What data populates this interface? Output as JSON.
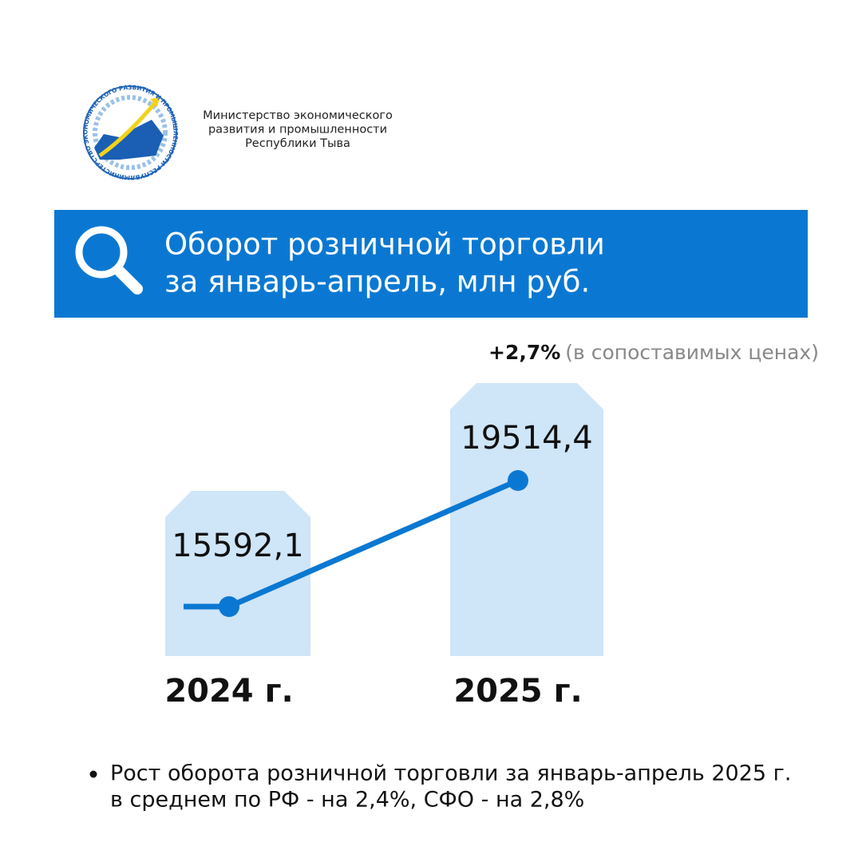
{
  "header": {
    "org_lines": [
      "Министерство экономического",
      "развития и промышленности",
      "Республики Тыва"
    ],
    "logo_text": "МИНИСТЕРСТВО ЭКОНОМИЧЕСКОГО РАЗВИТИЯ И ПРОМЫШЛЕННОСТИ РЕСПУБЛИКИ ТЫВА"
  },
  "chart_data": {
    "type": "bar",
    "title_lines": [
      "Оборот розничной торговли",
      "за январь-апрель, млн руб."
    ],
    "annotation": {
      "change": "+2,7%",
      "note": "(в сопоставимых ценах)"
    },
    "categories": [
      "2024 г.",
      "2025 г."
    ],
    "values": [
      15592.1,
      19514.4
    ],
    "value_labels": [
      "15592,1",
      "19514,4"
    ],
    "color": "#cfe5f8",
    "line_color": "#0a78d2"
  },
  "footnote": {
    "lines": [
      "Рост оборота розничной торговли за январь-апрель 2025 г.",
      "в среднем по РФ - на 2,4%, СФО - на 2,8%"
    ]
  }
}
